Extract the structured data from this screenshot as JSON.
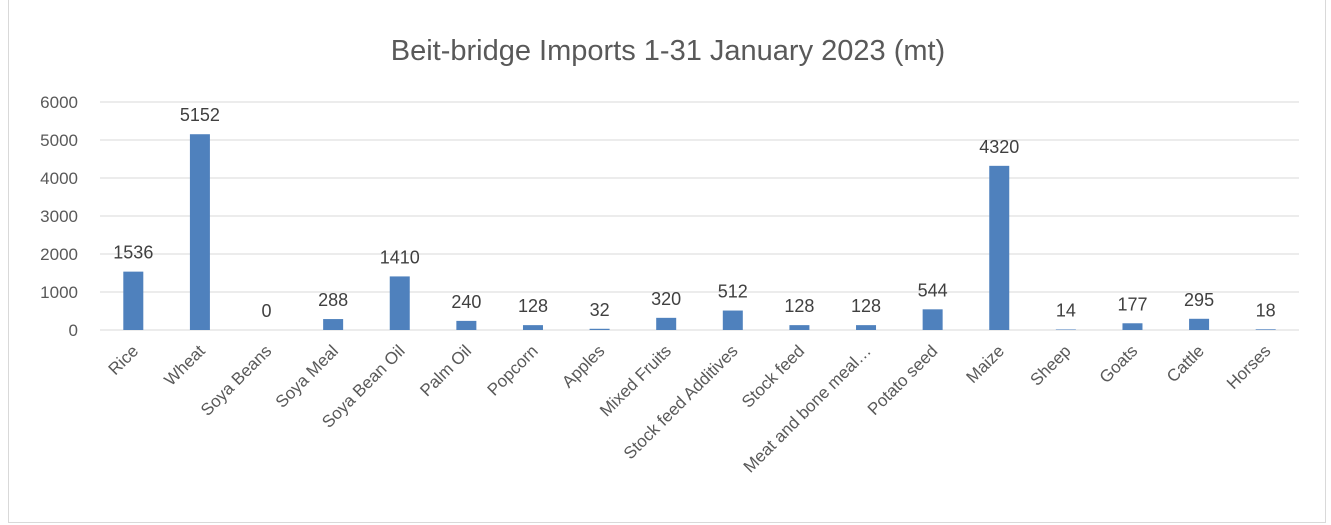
{
  "chart_data": {
    "type": "bar",
    "title": "Beit-bridge Imports 1-31 January 2023  (mt)",
    "xlabel": "",
    "ylabel": "",
    "ylim": [
      0,
      6000
    ],
    "yticks": [
      0,
      1000,
      2000,
      3000,
      4000,
      5000,
      6000
    ],
    "grid": true,
    "legend": "none",
    "bar_color": "#4f81bd",
    "categories": [
      "Rice",
      "Wheat",
      "Soya Beans",
      "Soya Meal",
      "Soya Bean Oil",
      "Palm Oil",
      "Popcorn",
      "Apples",
      "Mixed Fruits",
      "Stock feed Additives",
      "Stock feed",
      "Meat and bone meal…",
      "Potato seed",
      "Maize",
      "Sheep",
      "Goats",
      "Cattle",
      "Horses"
    ],
    "values": [
      1536,
      5152,
      0,
      288,
      1410,
      240,
      128,
      32,
      320,
      512,
      128,
      128,
      544,
      4320,
      14,
      177,
      295,
      18
    ]
  }
}
